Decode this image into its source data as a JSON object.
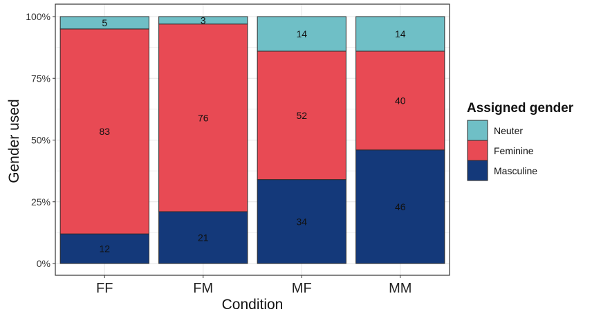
{
  "chart_data": {
    "type": "bar",
    "stacked": true,
    "normalized": true,
    "categories": [
      "FF",
      "FM",
      "MF",
      "MM"
    ],
    "series": [
      {
        "name": "Masculine",
        "values": [
          12,
          21,
          34,
          46
        ],
        "color": "#14397a"
      },
      {
        "name": "Feminine",
        "values": [
          83,
          76,
          52,
          40
        ],
        "color": "#e84a54"
      },
      {
        "name": "Neuter",
        "values": [
          5,
          3,
          14,
          14
        ],
        "color": "#6fbfc6"
      }
    ],
    "xlabel": "Condition",
    "ylabel": "Gender used",
    "yticks": [
      "0%",
      "25%",
      "50%",
      "75%",
      "100%"
    ],
    "ylim": [
      0,
      1
    ],
    "grid": true,
    "legend": {
      "title": "Assigned gender",
      "placement": "right",
      "entries": [
        "Neuter",
        "Feminine",
        "Masculine"
      ]
    }
  }
}
